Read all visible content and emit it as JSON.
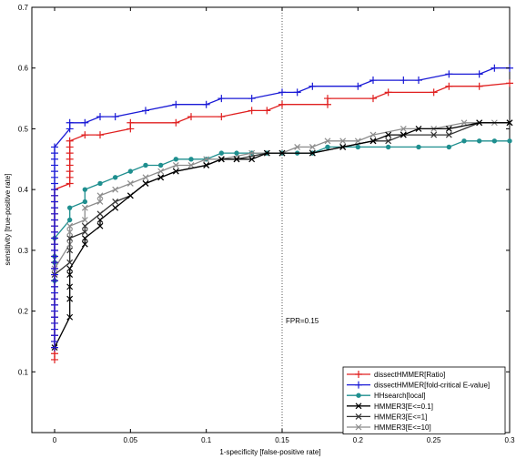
{
  "chart_data": {
    "type": "line",
    "xlabel": "1-specificity [false-positive rate]",
    "ylabel": "sensitivity [true-positive rate]",
    "xlim": [
      -0.015,
      0.3
    ],
    "ylim": [
      0,
      0.7
    ],
    "xticks": [
      0,
      0.05,
      0.1,
      0.15,
      0.2,
      0.25,
      0.3
    ],
    "xtick_labels": [
      "0",
      "0.05",
      "0.1",
      "0.15",
      "0.2",
      "0.25",
      "0.3"
    ],
    "yticks": [
      0.1,
      0.2,
      0.3,
      0.4,
      0.5,
      0.6,
      0.7
    ],
    "ytick_labels": [
      "0.1",
      "0.2",
      "0.3",
      "0.4",
      "0.5",
      "0.6",
      "0.7"
    ],
    "grid": false,
    "legend_position": "bottom-right",
    "reference_line": {
      "x": 0.15,
      "label": "FPR=0.15"
    },
    "series": [
      {
        "name": "dissectHMMER[Ratio]",
        "color": "#e02020",
        "marker": "plus",
        "points": [
          [
            0,
            0.12
          ],
          [
            0,
            0.13
          ],
          [
            0,
            0.14
          ],
          [
            0,
            0.15
          ],
          [
            0,
            0.16
          ],
          [
            0,
            0.17
          ],
          [
            0,
            0.18
          ],
          [
            0,
            0.19
          ],
          [
            0,
            0.2
          ],
          [
            0,
            0.21
          ],
          [
            0,
            0.22
          ],
          [
            0,
            0.23
          ],
          [
            0,
            0.24
          ],
          [
            0,
            0.25
          ],
          [
            0,
            0.26
          ],
          [
            0,
            0.27
          ],
          [
            0,
            0.28
          ],
          [
            0,
            0.29
          ],
          [
            0,
            0.3
          ],
          [
            0,
            0.31
          ],
          [
            0,
            0.32
          ],
          [
            0,
            0.33
          ],
          [
            0,
            0.34
          ],
          [
            0,
            0.35
          ],
          [
            0,
            0.36
          ],
          [
            0,
            0.37
          ],
          [
            0,
            0.38
          ],
          [
            0,
            0.39
          ],
          [
            0,
            0.4
          ],
          [
            0.01,
            0.41
          ],
          [
            0.01,
            0.42
          ],
          [
            0.01,
            0.43
          ],
          [
            0.01,
            0.44
          ],
          [
            0.01,
            0.45
          ],
          [
            0.01,
            0.46
          ],
          [
            0.01,
            0.47
          ],
          [
            0.01,
            0.48
          ],
          [
            0.02,
            0.49
          ],
          [
            0.03,
            0.49
          ],
          [
            0.05,
            0.5
          ],
          [
            0.05,
            0.51
          ],
          [
            0.08,
            0.51
          ],
          [
            0.09,
            0.52
          ],
          [
            0.11,
            0.52
          ],
          [
            0.13,
            0.53
          ],
          [
            0.14,
            0.53
          ],
          [
            0.15,
            0.54
          ],
          [
            0.18,
            0.54
          ],
          [
            0.18,
            0.55
          ],
          [
            0.21,
            0.55
          ],
          [
            0.22,
            0.56
          ],
          [
            0.25,
            0.56
          ],
          [
            0.26,
            0.57
          ],
          [
            0.28,
            0.57
          ],
          [
            0.3,
            0.575
          ]
        ]
      },
      {
        "name": "dissectHMMER[fold-critical E-value]",
        "color": "#1a1ad6",
        "marker": "plus",
        "points": [
          [
            0,
            0.14
          ],
          [
            0,
            0.15
          ],
          [
            0,
            0.16
          ],
          [
            0,
            0.17
          ],
          [
            0,
            0.18
          ],
          [
            0,
            0.19
          ],
          [
            0,
            0.2
          ],
          [
            0,
            0.21
          ],
          [
            0,
            0.22
          ],
          [
            0,
            0.23
          ],
          [
            0,
            0.24
          ],
          [
            0,
            0.25
          ],
          [
            0,
            0.26
          ],
          [
            0,
            0.27
          ],
          [
            0,
            0.28
          ],
          [
            0,
            0.29
          ],
          [
            0,
            0.3
          ],
          [
            0,
            0.31
          ],
          [
            0,
            0.32
          ],
          [
            0,
            0.33
          ],
          [
            0,
            0.34
          ],
          [
            0,
            0.35
          ],
          [
            0,
            0.36
          ],
          [
            0,
            0.37
          ],
          [
            0,
            0.38
          ],
          [
            0,
            0.39
          ],
          [
            0,
            0.4
          ],
          [
            0,
            0.41
          ],
          [
            0,
            0.42
          ],
          [
            0,
            0.43
          ],
          [
            0,
            0.44
          ],
          [
            0,
            0.45
          ],
          [
            0,
            0.46
          ],
          [
            0,
            0.47
          ],
          [
            0.01,
            0.5
          ],
          [
            0.01,
            0.51
          ],
          [
            0.02,
            0.51
          ],
          [
            0.03,
            0.52
          ],
          [
            0.04,
            0.52
          ],
          [
            0.06,
            0.53
          ],
          [
            0.08,
            0.54
          ],
          [
            0.1,
            0.54
          ],
          [
            0.11,
            0.55
          ],
          [
            0.13,
            0.55
          ],
          [
            0.15,
            0.56
          ],
          [
            0.16,
            0.56
          ],
          [
            0.17,
            0.57
          ],
          [
            0.2,
            0.57
          ],
          [
            0.21,
            0.58
          ],
          [
            0.23,
            0.58
          ],
          [
            0.24,
            0.58
          ],
          [
            0.26,
            0.59
          ],
          [
            0.28,
            0.59
          ],
          [
            0.29,
            0.6
          ],
          [
            0.3,
            0.6
          ]
        ]
      },
      {
        "name": "HHsearch[local]",
        "color": "#1f8f8f",
        "marker": "circle",
        "points": [
          [
            0,
            0.25
          ],
          [
            0,
            0.28
          ],
          [
            0,
            0.29
          ],
          [
            0,
            0.32
          ],
          [
            0.01,
            0.35
          ],
          [
            0.01,
            0.37
          ],
          [
            0.02,
            0.38
          ],
          [
            0.02,
            0.4
          ],
          [
            0.03,
            0.41
          ],
          [
            0.04,
            0.42
          ],
          [
            0.05,
            0.43
          ],
          [
            0.06,
            0.44
          ],
          [
            0.07,
            0.44
          ],
          [
            0.08,
            0.45
          ],
          [
            0.09,
            0.45
          ],
          [
            0.1,
            0.45
          ],
          [
            0.11,
            0.46
          ],
          [
            0.12,
            0.46
          ],
          [
            0.13,
            0.46
          ],
          [
            0.14,
            0.46
          ],
          [
            0.15,
            0.46
          ],
          [
            0.16,
            0.46
          ],
          [
            0.17,
            0.46
          ],
          [
            0.18,
            0.47
          ],
          [
            0.2,
            0.47
          ],
          [
            0.22,
            0.47
          ],
          [
            0.24,
            0.47
          ],
          [
            0.26,
            0.47
          ],
          [
            0.27,
            0.48
          ],
          [
            0.28,
            0.48
          ],
          [
            0.29,
            0.48
          ],
          [
            0.3,
            0.48
          ]
        ]
      },
      {
        "name": "HMMER3[E<=0.1]",
        "color": "#000000",
        "marker": "x",
        "points": [
          [
            0,
            0.14
          ],
          [
            0.01,
            0.19
          ],
          [
            0.01,
            0.22
          ],
          [
            0.01,
            0.24
          ],
          [
            0.01,
            0.26
          ],
          [
            0.01,
            0.27
          ],
          [
            0.02,
            0.31
          ],
          [
            0.02,
            0.32
          ],
          [
            0.03,
            0.34
          ],
          [
            0.03,
            0.35
          ],
          [
            0.04,
            0.37
          ],
          [
            0.05,
            0.39
          ],
          [
            0.06,
            0.41
          ],
          [
            0.07,
            0.42
          ],
          [
            0.08,
            0.43
          ],
          [
            0.1,
            0.44
          ],
          [
            0.11,
            0.45
          ],
          [
            0.12,
            0.45
          ],
          [
            0.13,
            0.45
          ],
          [
            0.14,
            0.46
          ],
          [
            0.15,
            0.46
          ],
          [
            0.17,
            0.46
          ],
          [
            0.19,
            0.47
          ],
          [
            0.21,
            0.48
          ],
          [
            0.22,
            0.49
          ],
          [
            0.23,
            0.49
          ],
          [
            0.24,
            0.5
          ],
          [
            0.26,
            0.5
          ],
          [
            0.28,
            0.51
          ],
          [
            0.3,
            0.51
          ]
        ]
      },
      {
        "name": "HMMER3[E<=1]",
        "color": "#333333",
        "marker": "x",
        "points": [
          [
            0,
            0.26
          ],
          [
            0.01,
            0.28
          ],
          [
            0.01,
            0.3
          ],
          [
            0.01,
            0.32
          ],
          [
            0.02,
            0.33
          ],
          [
            0.02,
            0.34
          ],
          [
            0.03,
            0.36
          ],
          [
            0.04,
            0.38
          ],
          [
            0.05,
            0.39
          ],
          [
            0.06,
            0.41
          ],
          [
            0.07,
            0.42
          ],
          [
            0.08,
            0.43
          ],
          [
            0.1,
            0.44
          ],
          [
            0.11,
            0.45
          ],
          [
            0.12,
            0.45
          ],
          [
            0.14,
            0.46
          ],
          [
            0.15,
            0.46
          ],
          [
            0.17,
            0.46
          ],
          [
            0.19,
            0.47
          ],
          [
            0.21,
            0.48
          ],
          [
            0.22,
            0.48
          ],
          [
            0.23,
            0.49
          ],
          [
            0.25,
            0.49
          ],
          [
            0.26,
            0.49
          ],
          [
            0.28,
            0.51
          ],
          [
            0.3,
            0.51
          ]
        ]
      },
      {
        "name": "HMMER3[E<=10]",
        "color": "#8c8c8c",
        "marker": "x",
        "points": [
          [
            0,
            0.27
          ],
          [
            0.01,
            0.31
          ],
          [
            0.01,
            0.33
          ],
          [
            0.01,
            0.34
          ],
          [
            0.02,
            0.35
          ],
          [
            0.02,
            0.37
          ],
          [
            0.03,
            0.38
          ],
          [
            0.03,
            0.39
          ],
          [
            0.04,
            0.4
          ],
          [
            0.05,
            0.41
          ],
          [
            0.06,
            0.42
          ],
          [
            0.07,
            0.43
          ],
          [
            0.08,
            0.44
          ],
          [
            0.09,
            0.44
          ],
          [
            0.1,
            0.45
          ],
          [
            0.11,
            0.45
          ],
          [
            0.13,
            0.46
          ],
          [
            0.15,
            0.46
          ],
          [
            0.16,
            0.47
          ],
          [
            0.17,
            0.47
          ],
          [
            0.18,
            0.48
          ],
          [
            0.19,
            0.48
          ],
          [
            0.2,
            0.48
          ],
          [
            0.21,
            0.49
          ],
          [
            0.23,
            0.5
          ],
          [
            0.25,
            0.5
          ],
          [
            0.27,
            0.51
          ],
          [
            0.28,
            0.51
          ],
          [
            0.29,
            0.51
          ],
          [
            0.3,
            0.51
          ]
        ]
      }
    ]
  }
}
